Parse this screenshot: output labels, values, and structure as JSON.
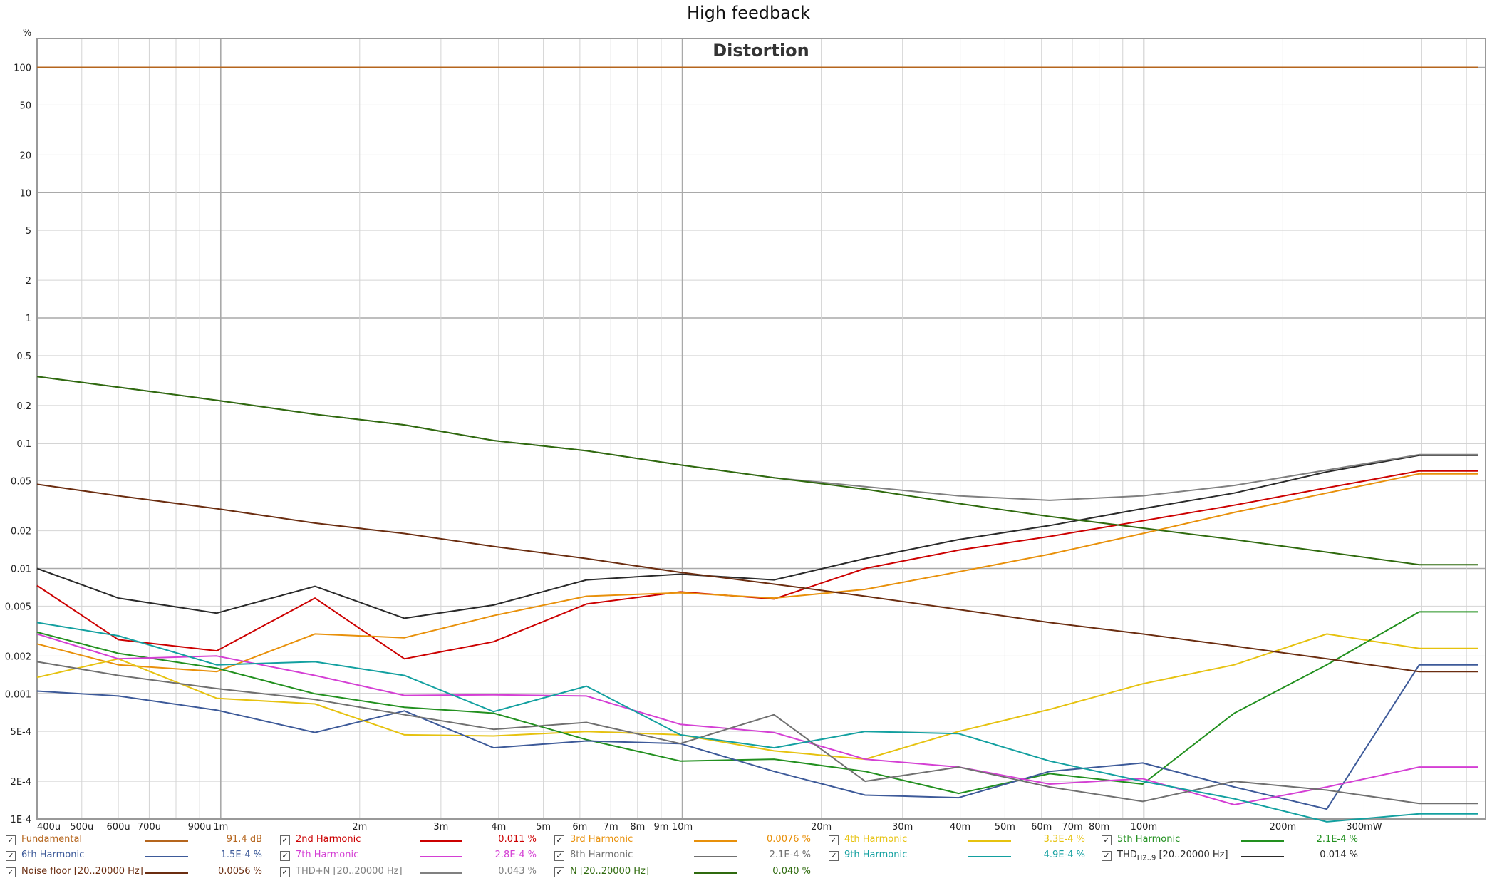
{
  "page_title": "High feedback",
  "chart_data": {
    "type": "line",
    "title": "Distortion",
    "ylabel": "%",
    "xlabel": "",
    "x_scale": "log",
    "y_scale": "log",
    "xlim": [
      0.0004,
      0.55
    ],
    "ylim": [
      0.0001,
      170
    ],
    "grid": true,
    "x_tick_values": [
      0.0004,
      0.0005,
      0.0006,
      0.0007,
      0.0009,
      0.001,
      0.002,
      0.003,
      0.004,
      0.005,
      0.006,
      0.007,
      0.008,
      0.009,
      0.01,
      0.02,
      0.03,
      0.04,
      0.05,
      0.06,
      0.07,
      0.08,
      0.1,
      0.2,
      0.3
    ],
    "x_tick_labels": [
      "400u",
      "500u",
      "600u",
      "700u",
      "900u",
      "1m",
      "2m",
      "3m",
      "4m",
      "5m",
      "6m",
      "7m",
      "8m",
      "9m",
      "10m",
      "20m",
      "30m",
      "40m",
      "50m",
      "60m",
      "70m",
      "80m",
      "100m",
      "200m",
      "300mW"
    ],
    "y_tick_values": [
      100,
      50,
      20,
      10,
      5,
      2,
      1,
      0.5,
      0.2,
      0.1,
      0.05,
      0.02,
      0.01,
      0.005,
      0.002,
      0.001,
      0.0005,
      0.0002,
      0.0001
    ],
    "y_tick_labels": [
      "100",
      "50",
      "20",
      "10",
      "5",
      "2",
      "1",
      "0.5",
      "0.2",
      "0.1",
      "0.05",
      "0.02",
      "0.01",
      "0.005",
      "0.002",
      "0.001",
      "5E-4",
      "2E-4",
      "1E-4"
    ],
    "x": [
      0.0004,
      0.0006,
      0.00098,
      0.0016,
      0.0025,
      0.0039,
      0.0062,
      0.0099,
      0.0158,
      0.0249,
      0.0397,
      0.0625,
      0.0994,
      0.157,
      0.249,
      0.395
    ],
    "series": [
      {
        "name": "Fundamental",
        "color": "#b5651d",
        "legend_value": "91.4 dB",
        "values": [
          100,
          100,
          100,
          100,
          100,
          100,
          100,
          100,
          100,
          100,
          100,
          100,
          100,
          100,
          100,
          100
        ]
      },
      {
        "name": "2nd Harmonic",
        "color": "#cc0000",
        "legend_value": "0.011 %",
        "values": [
          0.0073,
          0.0027,
          0.0022,
          0.0058,
          0.0019,
          0.0026,
          0.0052,
          0.0065,
          0.0057,
          0.01,
          0.014,
          0.018,
          0.024,
          0.032,
          0.044,
          0.06
        ]
      },
      {
        "name": "3rd Harmonic",
        "color": "#e8900a",
        "legend_value": "0.0076 %",
        "values": [
          0.0025,
          0.0017,
          0.0015,
          0.003,
          0.0028,
          0.0042,
          0.006,
          0.0064,
          0.0058,
          0.0068,
          0.0094,
          0.013,
          0.019,
          0.028,
          0.04,
          0.057
        ]
      },
      {
        "name": "4th Harmonic",
        "color": "#e6c20f",
        "legend_value": "3.3E-4 %",
        "values": [
          0.00135,
          0.0019,
          0.00092,
          0.00083,
          0.00047,
          0.00046,
          0.0005,
          0.00047,
          0.00035,
          0.0003,
          0.0005,
          0.00075,
          0.0012,
          0.0017,
          0.003,
          0.0023
        ]
      },
      {
        "name": "5th Harmonic",
        "color": "#22901f",
        "legend_value": "2.1E-4 %",
        "values": [
          0.0031,
          0.0021,
          0.0016,
          0.001,
          0.00078,
          0.0007,
          0.00043,
          0.00029,
          0.0003,
          0.00024,
          0.00016,
          0.00023,
          0.00019,
          0.0007,
          0.0017,
          0.0045
        ]
      },
      {
        "name": "6th Harmonic",
        "color": "#3d5a99",
        "legend_value": "1.5E-4 %",
        "values": [
          0.00105,
          0.00096,
          0.00074,
          0.00049,
          0.00073,
          0.00037,
          0.00042,
          0.0004,
          0.00024,
          0.000155,
          0.000148,
          0.00024,
          0.00028,
          0.00018,
          0.00012,
          0.0017
        ]
      },
      {
        "name": "7th Harmonic",
        "color": "#d43fd4",
        "legend_value": "2.8E-4 %",
        "values": [
          0.003,
          0.0019,
          0.002,
          0.0014,
          0.00097,
          0.00098,
          0.00096,
          0.00057,
          0.00049,
          0.0003,
          0.00026,
          0.00019,
          0.00021,
          0.00013,
          0.00018,
          0.00026
        ]
      },
      {
        "name": "8th Harmonic",
        "color": "#707070",
        "legend_value": "2.1E-4 %",
        "values": [
          0.0018,
          0.0014,
          0.0011,
          0.0009,
          0.00068,
          0.00052,
          0.00059,
          0.0004,
          0.00068,
          0.0002,
          0.00026,
          0.00018,
          0.000138,
          0.0002,
          0.00017,
          0.000133
        ]
      },
      {
        "name": "9th Harmonic",
        "color": "#13a0a0",
        "legend_value": "4.9E-4 %",
        "values": [
          0.0037,
          0.0029,
          0.0017,
          0.0018,
          0.0014,
          0.00072,
          0.00115,
          0.00047,
          0.00037,
          0.0005,
          0.00048,
          0.00029,
          0.0002,
          0.000145,
          9.5e-05,
          0.00011
        ]
      },
      {
        "name": "THD",
        "label_sub": "H2..9",
        "label_suffix": "[20..20000 Hz]",
        "color": "#2a2a2a",
        "legend_value": "0.014 %",
        "values": [
          0.01,
          0.0058,
          0.0044,
          0.0072,
          0.004,
          0.0051,
          0.0081,
          0.009,
          0.0081,
          0.012,
          0.017,
          0.022,
          0.03,
          0.04,
          0.059,
          0.08
        ]
      },
      {
        "name": "Noise floor [20..20000 Hz]",
        "color": "#6b2d10",
        "legend_value": "0.0056 %",
        "values": [
          0.047,
          0.038,
          0.03,
          0.023,
          0.019,
          0.015,
          0.012,
          0.0093,
          0.0075,
          0.006,
          0.0047,
          0.0037,
          0.003,
          0.0024,
          0.0019,
          0.0015
        ]
      },
      {
        "name": "THD+N [20..20000 Hz]",
        "color": "#808080",
        "legend_value": "0.043 %",
        "values": [
          0.34,
          0.28,
          0.22,
          0.17,
          0.14,
          0.105,
          0.087,
          0.067,
          0.053,
          0.045,
          0.038,
          0.035,
          0.038,
          0.046,
          0.061,
          0.081
        ]
      },
      {
        "name": "N [20..20000 Hz]",
        "color": "#2f6a0e",
        "legend_value": "0.040 %",
        "values": [
          0.34,
          0.28,
          0.22,
          0.17,
          0.14,
          0.105,
          0.087,
          0.067,
          0.053,
          0.043,
          0.033,
          0.026,
          0.021,
          0.017,
          0.0135,
          0.0107
        ]
      }
    ]
  },
  "legend": {
    "rows": [
      [
        0,
        1,
        2,
        3,
        4
      ],
      [
        5,
        6,
        7,
        8,
        9
      ],
      [
        10,
        11,
        12
      ]
    ]
  }
}
